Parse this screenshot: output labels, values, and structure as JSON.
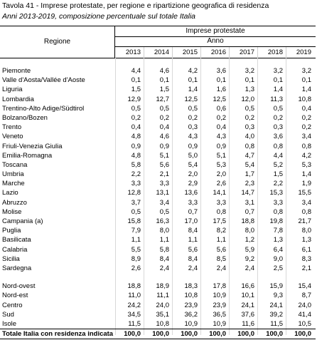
{
  "title": "Tavola 41 - Imprese protestate, per regione e ripartizione geografica di residenza",
  "subtitle": "Anni 2013-2019, composizione percentuale sul totale Italia",
  "header": {
    "regione": "Regione",
    "group": "Imprese protestate",
    "anno": "Anno",
    "years": [
      "2013",
      "2014",
      "2015",
      "2016",
      "2017",
      "2018",
      "2019"
    ]
  },
  "regions": [
    {
      "name": "Piemonte",
      "values": [
        "4,4",
        "4,6",
        "4,2",
        "3,6",
        "3,2",
        "3,2",
        "3,2"
      ]
    },
    {
      "name": "Valle d'Aosta/Vallée d'Aoste",
      "values": [
        "0,1",
        "0,1",
        "0,1",
        "0,1",
        "0,1",
        "0,1",
        "0,1"
      ]
    },
    {
      "name": "Liguria",
      "values": [
        "1,5",
        "1,5",
        "1,4",
        "1,6",
        "1,3",
        "1,4",
        "1,4"
      ]
    },
    {
      "name": "Lombardia",
      "values": [
        "12,9",
        "12,7",
        "12,5",
        "12,5",
        "12,0",
        "11,3",
        "10,8"
      ]
    },
    {
      "name": "Trentino-Alto Adige/Südtirol",
      "values": [
        "0,5",
        "0,5",
        "0,5",
        "0,6",
        "0,5",
        "0,5",
        "0,4"
      ]
    },
    {
      "name": "Bolzano/Bozen",
      "values": [
        "0,2",
        "0,2",
        "0,2",
        "0,2",
        "0,2",
        "0,2",
        "0,2"
      ]
    },
    {
      "name": "Trento",
      "values": [
        "0,4",
        "0,4",
        "0,3",
        "0,4",
        "0,3",
        "0,3",
        "0,2"
      ]
    },
    {
      "name": "Veneto",
      "values": [
        "4,8",
        "4,6",
        "4,3",
        "4,3",
        "4,0",
        "3,6",
        "3,4"
      ]
    },
    {
      "name": "Friuli-Venezia Giulia",
      "values": [
        "0,9",
        "0,9",
        "0,9",
        "0,9",
        "0,8",
        "0,8",
        "0,8"
      ]
    },
    {
      "name": "Emilia-Romagna",
      "values": [
        "4,8",
        "5,1",
        "5,0",
        "5,1",
        "4,7",
        "4,4",
        "4,2"
      ]
    },
    {
      "name": "Toscana",
      "values": [
        "5,8",
        "5,6",
        "5,4",
        "5,3",
        "5,4",
        "5,2",
        "5,3"
      ]
    },
    {
      "name": "Umbria",
      "values": [
        "2,2",
        "2,1",
        "2,0",
        "2,0",
        "1,7",
        "1,5",
        "1,4"
      ]
    },
    {
      "name": "Marche",
      "values": [
        "3,3",
        "3,3",
        "2,9",
        "2,6",
        "2,3",
        "2,2",
        "1,9"
      ]
    },
    {
      "name": "Lazio",
      "values": [
        "12,8",
        "13,1",
        "13,6",
        "14,1",
        "14,7",
        "15,3",
        "15,5"
      ]
    },
    {
      "name": "Abruzzo",
      "values": [
        "3,7",
        "3,4",
        "3,3",
        "3,3",
        "3,1",
        "3,3",
        "3,4"
      ]
    },
    {
      "name": "Molise",
      "values": [
        "0,5",
        "0,5",
        "0,7",
        "0,8",
        "0,7",
        "0,8",
        "0,8"
      ]
    },
    {
      "name": "Campania (a)",
      "values": [
        "15,8",
        "16,3",
        "17,0",
        "17,5",
        "18,8",
        "19,8",
        "21,7"
      ]
    },
    {
      "name": "Puglia",
      "values": [
        "7,9",
        "8,0",
        "8,4",
        "8,2",
        "8,0",
        "7,8",
        "8,0"
      ]
    },
    {
      "name": "Basilicata",
      "values": [
        "1,1",
        "1,1",
        "1,1",
        "1,1",
        "1,2",
        "1,3",
        "1,3"
      ]
    },
    {
      "name": "Calabria",
      "values": [
        "5,5",
        "5,8",
        "5,6",
        "5,6",
        "5,9",
        "6,4",
        "6,1"
      ]
    },
    {
      "name": "Sicilia",
      "values": [
        "8,9",
        "8,4",
        "8,4",
        "8,5",
        "9,2",
        "9,0",
        "8,3"
      ]
    },
    {
      "name": "Sardegna",
      "values": [
        "2,6",
        "2,4",
        "2,4",
        "2,4",
        "2,4",
        "2,5",
        "2,1"
      ]
    }
  ],
  "areas": [
    {
      "name": "Nord-ovest",
      "values": [
        "18,8",
        "18,9",
        "18,3",
        "17,8",
        "16,6",
        "15,9",
        "15,4"
      ]
    },
    {
      "name": "Nord-est",
      "values": [
        "11,0",
        "11,1",
        "10,8",
        "10,9",
        "10,1",
        "9,3",
        "8,7"
      ]
    },
    {
      "name": "Centro",
      "values": [
        "24,2",
        "24,0",
        "23,9",
        "23,9",
        "24,1",
        "24,1",
        "24,0"
      ]
    },
    {
      "name": "Sud",
      "values": [
        "34,5",
        "35,1",
        "36,2",
        "36,5",
        "37,6",
        "39,2",
        "41,4"
      ]
    },
    {
      "name": "Isole",
      "values": [
        "11,5",
        "10,8",
        "10,9",
        "10,9",
        "11,6",
        "11,5",
        "10,5"
      ]
    }
  ],
  "total": {
    "name": "Totale Italia con residenza indicata",
    "values": [
      "100,0",
      "100,0",
      "100,0",
      "100,0",
      "100,0",
      "100,0",
      "100,0"
    ]
  }
}
